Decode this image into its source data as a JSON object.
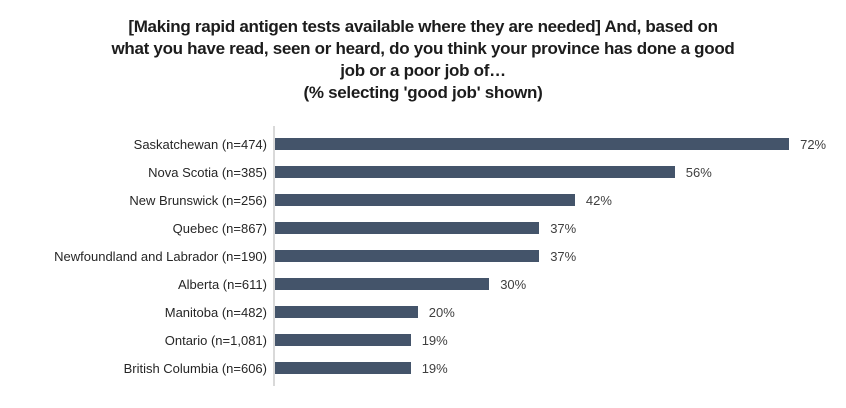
{
  "title": {
    "lines": [
      "[Making rapid antigen tests available where they are needed] And, based on",
      "what you have read, seen or heard, do you think your province has done a good",
      "job or a poor job of…",
      "(% selecting 'good job' shown)"
    ]
  },
  "chart_data": {
    "type": "bar",
    "orientation": "horizontal",
    "title": "[Making rapid antigen tests available where they are needed] And, based on what you have read, seen or heard, do you think your province has done a good job or a poor job of…",
    "subtitle": "(% selecting 'good job' shown)",
    "categories": [
      "Saskatchewan (n=474)",
      "Nova Scotia (n=385)",
      "New Brunswick (n=256)",
      "Quebec (n=867)",
      "Newfoundland and Labrador (n=190)",
      "Alberta (n=611)",
      "Manitoba (n=482)",
      "Ontario (n=1,081)",
      "British Columbia (n=606)"
    ],
    "values": [
      72,
      56,
      42,
      37,
      37,
      30,
      20,
      19,
      19
    ],
    "display_values": [
      "72%",
      "56%",
      "42%",
      "37%",
      "37%",
      "30%",
      "20%",
      "19%",
      "19%"
    ],
    "unit": "%",
    "xlim": [
      0,
      80
    ],
    "grid": false,
    "legend_position": "none",
    "bar_color": "#44546a",
    "axis_line_color": "#d9d9d9"
  }
}
